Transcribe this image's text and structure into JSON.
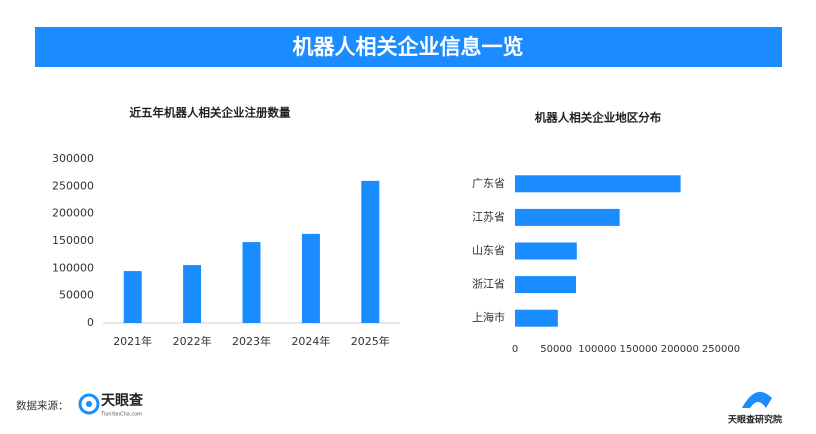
{
  "header": {
    "title": "机器人相关企业信息一览"
  },
  "chart_data": [
    {
      "type": "bar",
      "title": "近五年机器人相关企业注册数量",
      "categories": [
        "2021年",
        "2022年",
        "2023年",
        "2024年",
        "2025年"
      ],
      "values": [
        95000,
        106000,
        148000,
        163000,
        260000
      ],
      "color": "#1a8cff",
      "ylim": [
        0,
        300000
      ],
      "yticks": [
        0,
        50000,
        100000,
        150000,
        200000,
        250000,
        300000
      ],
      "grid": false
    },
    {
      "type": "barh",
      "title": "机器人相关企业地区分布",
      "categories": [
        "广东省",
        "江苏省",
        "山东省",
        "浙江省",
        "上海市"
      ],
      "values": [
        201000,
        127000,
        75000,
        74000,
        52000
      ],
      "color": "#1a8cff",
      "xlim": [
        0,
        250000
      ],
      "xticks": [
        0,
        50000,
        100000,
        150000,
        200000,
        250000
      ],
      "grid": false
    }
  ],
  "footer": {
    "source_label": "数据来源：",
    "logo_name": "天眼查",
    "logo_url": "TianYanCha.com",
    "institute": "天眼查研究院"
  }
}
